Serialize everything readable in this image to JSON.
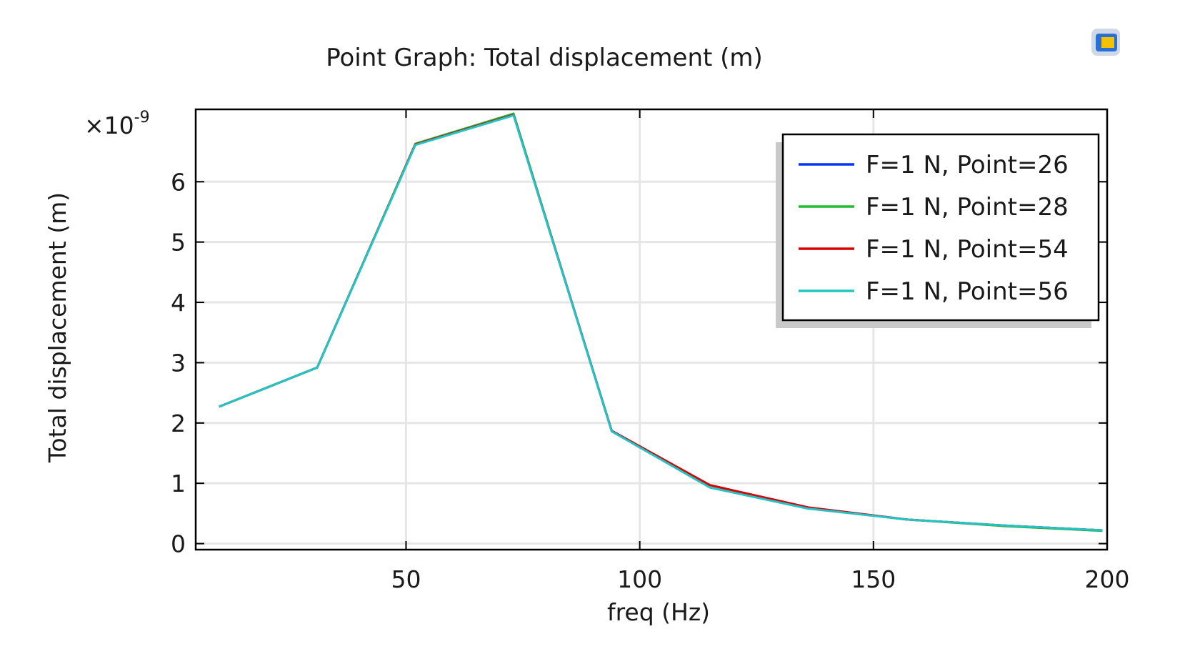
{
  "chart_data": {
    "type": "line",
    "title": "Point Graph: Total displacement (m)",
    "xlabel": "freq (Hz)",
    "ylabel": "Total displacement (m)",
    "y_multiplier": "×10",
    "y_multiplier_exponent": "-9",
    "xlim": [
      5,
      200
    ],
    "ylim": [
      -0.1,
      7.2
    ],
    "x_ticks": [
      50,
      100,
      150,
      200
    ],
    "x_tick_labels": [
      "50",
      "100",
      "150",
      "200"
    ],
    "y_ticks": [
      0,
      1,
      2,
      3,
      4,
      5,
      6
    ],
    "y_tick_labels": [
      "0",
      "1",
      "2",
      "3",
      "4",
      "5",
      "6"
    ],
    "grid": true,
    "legend_position": "top-right",
    "x": [
      10,
      31,
      52,
      73,
      94,
      115,
      136,
      157,
      178,
      199
    ],
    "series": [
      {
        "name": "F=1 N, Point=26",
        "color": "#0033ff",
        "values": [
          2.27,
          2.92,
          6.62,
          7.11,
          1.87,
          0.97,
          0.6,
          0.4,
          0.3,
          0.22
        ]
      },
      {
        "name": "F=1 N, Point=28",
        "color": "#22bb33",
        "values": [
          2.27,
          2.92,
          6.63,
          7.13,
          1.86,
          0.97,
          0.59,
          0.4,
          0.29,
          0.21
        ]
      },
      {
        "name": "F=1 N, Point=54",
        "color": "#dd0000",
        "values": [
          2.27,
          2.92,
          6.62,
          7.11,
          1.87,
          0.97,
          0.6,
          0.4,
          0.3,
          0.22
        ]
      },
      {
        "name": "F=1 N, Point=56",
        "color": "#22c4c4",
        "values": [
          2.27,
          2.92,
          6.61,
          7.1,
          1.86,
          0.93,
          0.58,
          0.4,
          0.3,
          0.22
        ]
      }
    ]
  }
}
